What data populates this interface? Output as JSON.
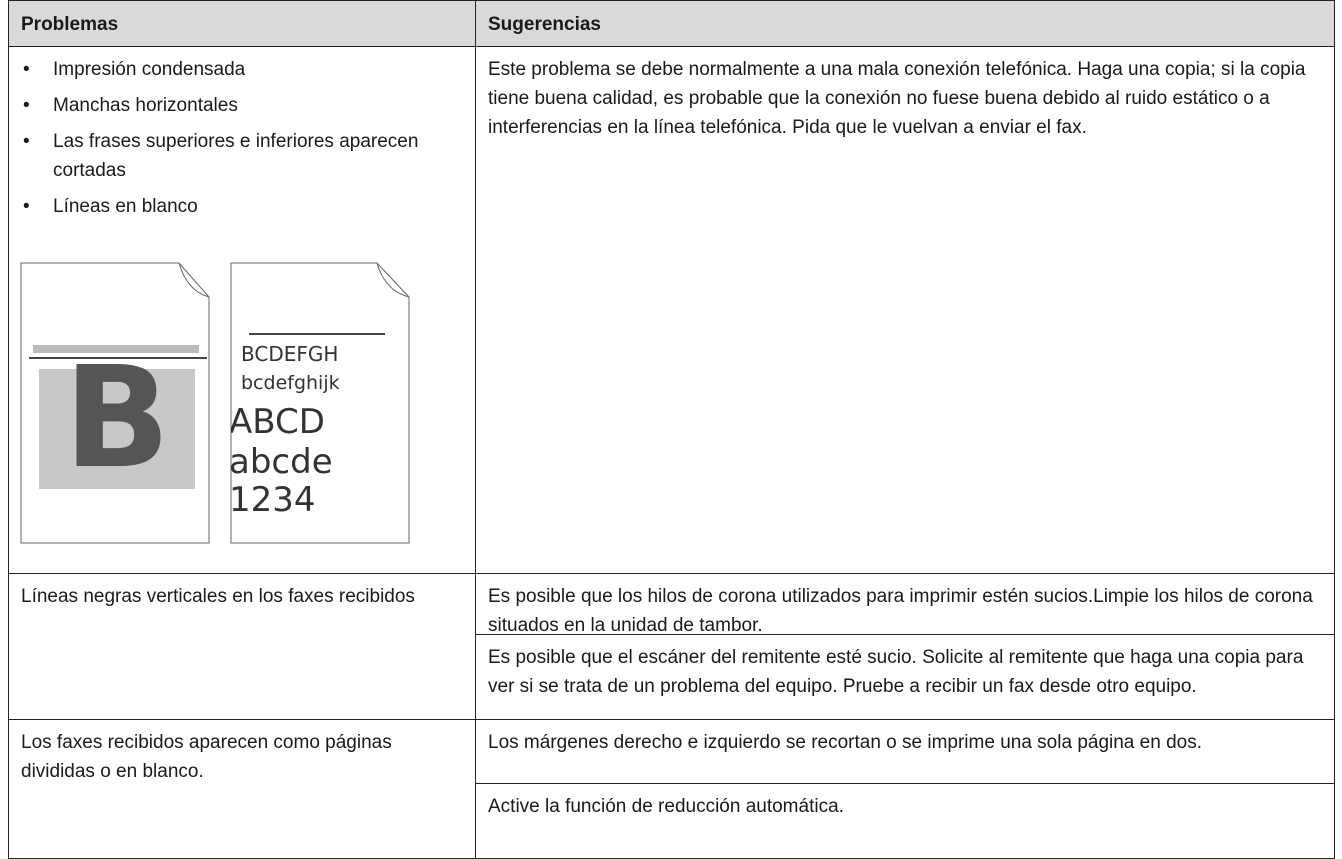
{
  "table": {
    "header": [
      "Problemas",
      "Sugerencias"
    ],
    "rows": [
      {
        "problems": [
          "Impresión condensada",
          "Manchas horizontales",
          "Las frases superiores e inferiores aparecen cortadas",
          "Líneas en blanco"
        ],
        "illustration": {
          "big_letter": "B",
          "lines": [
            "BCDEFGH",
            "bcdefghijk",
            "ABCD",
            "abcde",
            "1234"
          ]
        },
        "suggestions": [
          "Este problema se debe normalmente a una mala conexión telefónica. Haga una copia; si la copia tiene buena calidad, es probable que la conexión no fuese buena debido al ruido estático o a interferencias en la línea telefónica. Pida que le vuelvan a enviar el fax."
        ]
      },
      {
        "problem": "Líneas negras verticales en los faxes recibidos",
        "suggestions": [
          "Es posible que los hilos de corona utilizados para imprimir estén sucios.Limpie los hilos de corona situados en la unidad de tambor.",
          "Es posible que el escáner del remitente esté sucio. Solicite al remitente que haga una copia para ver si se trata de un problema del equipo. Pruebe a recibir un fax desde otro equipo."
        ]
      },
      {
        "problem": "Los faxes recibidos aparecen como páginas divididas o en blanco.",
        "suggestions": [
          "Los márgenes derecho e izquierdo se recortan o se imprime una sola página en dos.",
          "Active la función de reducción automática."
        ]
      }
    ]
  }
}
